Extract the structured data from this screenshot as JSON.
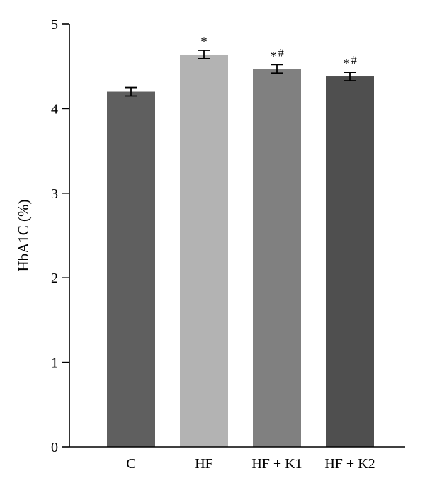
{
  "chart_data": {
    "type": "bar",
    "title": "",
    "xlabel": "",
    "ylabel": "HbA1C (%)",
    "ylim": [
      0,
      5
    ],
    "yticks": [
      0,
      1,
      2,
      3,
      4,
      5
    ],
    "grid": false,
    "legend": "none",
    "categories": [
      "C",
      "HF",
      "HF + K1",
      "HF + K2"
    ],
    "values": [
      4.2,
      4.64,
      4.47,
      4.38
    ],
    "errors": [
      0.05,
      0.05,
      0.05,
      0.05
    ],
    "significance": [
      "",
      "*",
      "*#",
      "*#"
    ],
    "colors": [
      "#5f5f5f",
      "#b3b3b3",
      "#808080",
      "#4f4f4f"
    ]
  }
}
